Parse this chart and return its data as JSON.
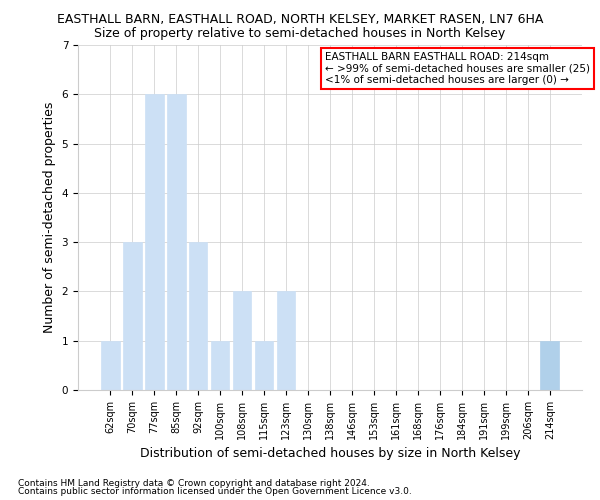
{
  "title_line1": "EASTHALL BARN, EASTHALL ROAD, NORTH KELSEY, MARKET RASEN, LN7 6HA",
  "title_line2": "Size of property relative to semi-detached houses in North Kelsey",
  "xlabel": "Distribution of semi-detached houses by size in North Kelsey",
  "ylabel": "Number of semi-detached properties",
  "categories": [
    "62sqm",
    "70sqm",
    "77sqm",
    "85sqm",
    "92sqm",
    "100sqm",
    "108sqm",
    "115sqm",
    "123sqm",
    "130sqm",
    "138sqm",
    "146sqm",
    "153sqm",
    "161sqm",
    "168sqm",
    "176sqm",
    "184sqm",
    "191sqm",
    "199sqm",
    "206sqm",
    "214sqm"
  ],
  "values": [
    1,
    3,
    6,
    6,
    3,
    1,
    2,
    1,
    2,
    0,
    0,
    0,
    0,
    0,
    0,
    0,
    0,
    0,
    0,
    0,
    1
  ],
  "bar_color_normal": "#cce0f5",
  "bar_color_highlight": "#b0d0ea",
  "highlight_index": 20,
  "ylim": [
    0,
    7
  ],
  "yticks": [
    0,
    1,
    2,
    3,
    4,
    5,
    6,
    7
  ],
  "annotation_box_text_line1": "EASTHALL BARN EASTHALL ROAD: 214sqm",
  "annotation_box_text_line2": "← >99% of semi-detached houses are smaller (25)",
  "annotation_box_text_line3": "<1% of semi-detached houses are larger (0) →",
  "annotation_box_color": "#ff0000",
  "footer_line1": "Contains HM Land Registry data © Crown copyright and database right 2024.",
  "footer_line2": "Contains public sector information licensed under the Open Government Licence v3.0.",
  "grid_color": "#cccccc",
  "background_color": "#ffffff",
  "title_fontsize": 9,
  "subtitle_fontsize": 9,
  "axis_label_fontsize": 9,
  "tick_fontsize": 7,
  "footer_fontsize": 6.5,
  "annotation_fontsize": 7.5
}
